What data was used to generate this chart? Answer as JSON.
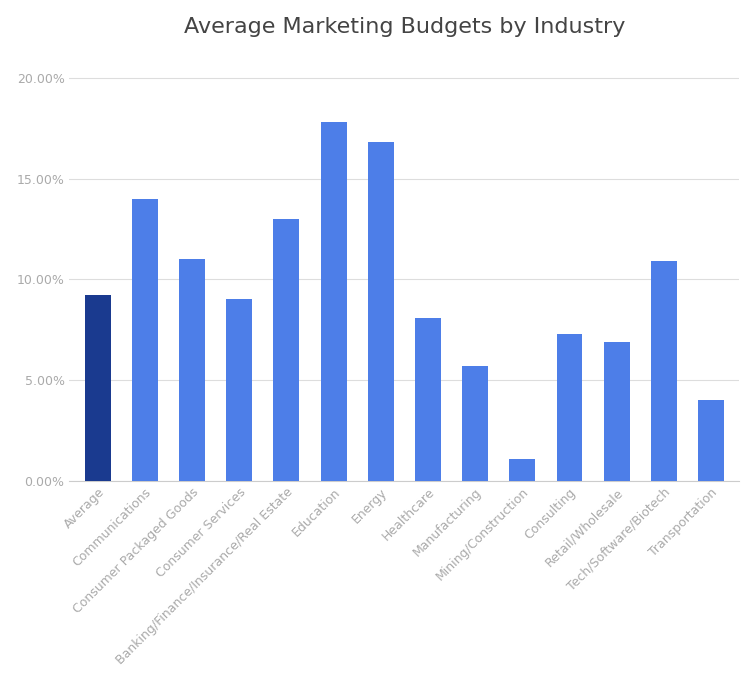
{
  "title": "Average Marketing Budgets by Industry",
  "categories": [
    "Average",
    "Communications",
    "Consumer Packaged Goods",
    "Consumer Services",
    "Banking/Finance/Insurance/Real Estate",
    "Education",
    "Energy",
    "Healthcare",
    "Manufacturing",
    "Mining/Construction",
    "Consulting",
    "Retail/Wholesale",
    "Tech/Software/Biotech",
    "Transportation"
  ],
  "values": [
    0.092,
    0.14,
    0.11,
    0.09,
    0.13,
    0.178,
    0.168,
    0.081,
    0.057,
    0.011,
    0.073,
    0.069,
    0.109,
    0.04
  ],
  "bar_colors": [
    "#1a3a8f",
    "#4d7ee8",
    "#4d7ee8",
    "#4d7ee8",
    "#4d7ee8",
    "#4d7ee8",
    "#4d7ee8",
    "#4d7ee8",
    "#4d7ee8",
    "#4d7ee8",
    "#4d7ee8",
    "#4d7ee8",
    "#4d7ee8",
    "#4d7ee8"
  ],
  "ylim": [
    0,
    0.21
  ],
  "yticks": [
    0.0,
    0.05,
    0.1,
    0.15,
    0.2
  ],
  "ytick_labels": [
    "0.00%",
    "5.00%",
    "10.00%",
    "15.00%",
    "20.00%"
  ],
  "background_color": "#ffffff",
  "grid_color": "#dddddd",
  "title_fontsize": 16,
  "tick_fontsize": 9,
  "label_color": "#aaaaaa"
}
